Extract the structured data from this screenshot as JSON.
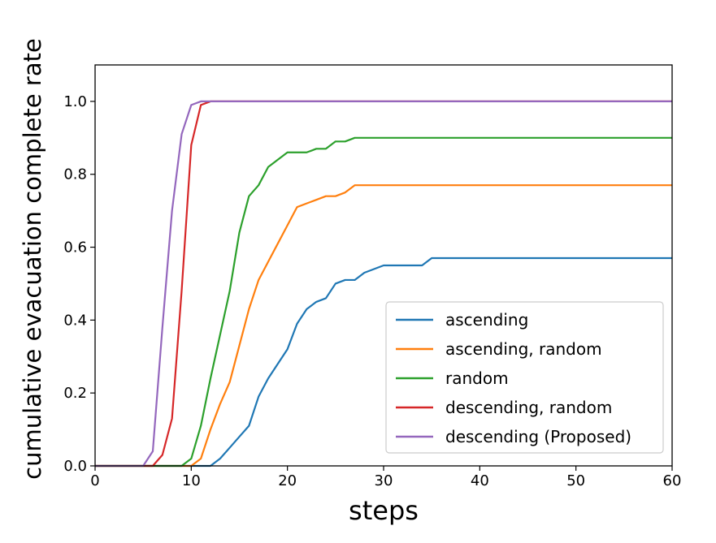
{
  "chart_data": {
    "type": "line",
    "title": "",
    "xlabel": "steps",
    "ylabel": "cumulative evacuation complete rate",
    "xlim": [
      0,
      60
    ],
    "ylim": [
      0.0,
      1.1
    ],
    "xticks": [
      "0",
      "10",
      "20",
      "30",
      "40",
      "50",
      "60"
    ],
    "yticks": [
      "0.0",
      "0.2",
      "0.4",
      "0.6",
      "0.8",
      "1.0"
    ],
    "grid": false,
    "legend_position": "lower-right",
    "series": [
      {
        "name": "ascending",
        "color": "#1f77b4",
        "points": [
          [
            0,
            0
          ],
          [
            12,
            0
          ],
          [
            13,
            0.02
          ],
          [
            14,
            0.05
          ],
          [
            15,
            0.08
          ],
          [
            16,
            0.11
          ],
          [
            17,
            0.19
          ],
          [
            18,
            0.24
          ],
          [
            19,
            0.28
          ],
          [
            20,
            0.32
          ],
          [
            21,
            0.39
          ],
          [
            22,
            0.43
          ],
          [
            23,
            0.45
          ],
          [
            24,
            0.46
          ],
          [
            25,
            0.5
          ],
          [
            26,
            0.51
          ],
          [
            27,
            0.51
          ],
          [
            28,
            0.53
          ],
          [
            29,
            0.54
          ],
          [
            30,
            0.55
          ],
          [
            34,
            0.55
          ],
          [
            35,
            0.57
          ],
          [
            60,
            0.57
          ]
        ]
      },
      {
        "name": "ascending, random",
        "color": "#ff7f0e",
        "points": [
          [
            0,
            0
          ],
          [
            10,
            0
          ],
          [
            11,
            0.02
          ],
          [
            12,
            0.1
          ],
          [
            13,
            0.17
          ],
          [
            14,
            0.23
          ],
          [
            15,
            0.33
          ],
          [
            16,
            0.43
          ],
          [
            17,
            0.51
          ],
          [
            18,
            0.56
          ],
          [
            19,
            0.61
          ],
          [
            20,
            0.66
          ],
          [
            21,
            0.71
          ],
          [
            22,
            0.72
          ],
          [
            23,
            0.73
          ],
          [
            24,
            0.74
          ],
          [
            25,
            0.74
          ],
          [
            26,
            0.75
          ],
          [
            27,
            0.77
          ],
          [
            60,
            0.77
          ]
        ]
      },
      {
        "name": "random",
        "color": "#2ca02c",
        "points": [
          [
            0,
            0
          ],
          [
            9,
            0
          ],
          [
            10,
            0.02
          ],
          [
            11,
            0.11
          ],
          [
            12,
            0.24
          ],
          [
            13,
            0.36
          ],
          [
            14,
            0.48
          ],
          [
            15,
            0.64
          ],
          [
            16,
            0.74
          ],
          [
            17,
            0.77
          ],
          [
            18,
            0.82
          ],
          [
            19,
            0.84
          ],
          [
            20,
            0.86
          ],
          [
            22,
            0.86
          ],
          [
            23,
            0.87
          ],
          [
            24,
            0.87
          ],
          [
            25,
            0.89
          ],
          [
            26,
            0.89
          ],
          [
            27,
            0.9
          ],
          [
            60,
            0.9
          ]
        ]
      },
      {
        "name": "descending, random",
        "color": "#d62728",
        "points": [
          [
            0,
            0
          ],
          [
            6,
            0
          ],
          [
            7,
            0.03
          ],
          [
            8,
            0.13
          ],
          [
            9,
            0.48
          ],
          [
            10,
            0.88
          ],
          [
            11,
            0.99
          ],
          [
            12,
            1.0
          ],
          [
            60,
            1.0
          ]
        ]
      },
      {
        "name": "descending (Proposed)",
        "color": "#9467bd",
        "points": [
          [
            0,
            0
          ],
          [
            5,
            0
          ],
          [
            6,
            0.04
          ],
          [
            7,
            0.38
          ],
          [
            8,
            0.7
          ],
          [
            9,
            0.91
          ],
          [
            10,
            0.99
          ],
          [
            11,
            1.0
          ],
          [
            60,
            1.0
          ]
        ]
      }
    ]
  }
}
